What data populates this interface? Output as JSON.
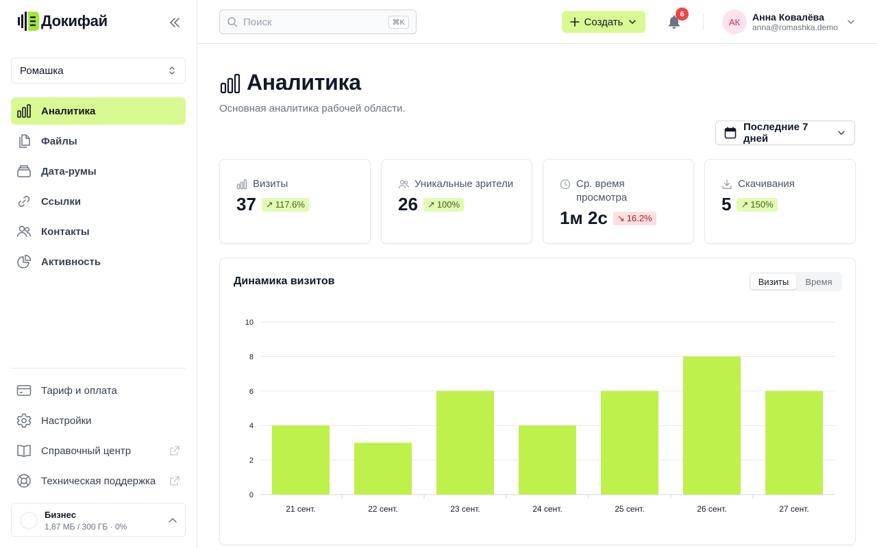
{
  "app": {
    "name": "Докифай"
  },
  "sidebar": {
    "workspace": "Ромашка",
    "nav": [
      {
        "label": "Аналитика",
        "icon": "bar-chart-icon",
        "active": true
      },
      {
        "label": "Файлы",
        "icon": "files-icon"
      },
      {
        "label": "Дата-румы",
        "icon": "data-room-icon"
      },
      {
        "label": "Ссылки",
        "icon": "link-icon"
      },
      {
        "label": "Контакты",
        "icon": "contacts-icon"
      },
      {
        "label": "Активность",
        "icon": "pie-chart-icon"
      }
    ],
    "bottom_nav": [
      {
        "label": "Тариф и оплата",
        "icon": "credit-card-icon"
      },
      {
        "label": "Настройки",
        "icon": "gear-icon"
      },
      {
        "label": "Справочный центр",
        "icon": "book-icon",
        "external": true
      },
      {
        "label": "Техническая поддержка",
        "icon": "lifebuoy-icon",
        "external": true
      }
    ],
    "plan": {
      "name": "Бизнес",
      "usage": "1,87 МБ / 300 ГБ · 0%",
      "percent": 0
    }
  },
  "topbar": {
    "search_placeholder": "Поиск",
    "search_shortcut": "⌘K",
    "create_label": "Создать",
    "notifications_count": "6",
    "user": {
      "initials": "АК",
      "name": "Анна Ковалёва",
      "email": "anna@romashka.demo"
    }
  },
  "page": {
    "title": "Аналитика",
    "subtitle": "Основная аналитика рабочей области.",
    "date_range": "Последние 7 дней"
  },
  "stats": [
    {
      "label": "Визиты",
      "value": "37",
      "change": "117.6%",
      "trend": "up",
      "icon": "bar-chart-icon"
    },
    {
      "label": "Уникальные зрители",
      "value": "26",
      "change": "100%",
      "trend": "up",
      "icon": "users-icon"
    },
    {
      "label": "Ср. время просмотра",
      "value": "1м 2с",
      "change": "16.2%",
      "trend": "down",
      "icon": "clock-icon"
    },
    {
      "label": "Скачивания",
      "value": "5",
      "change": "150%",
      "trend": "up",
      "icon": "download-icon"
    }
  ],
  "chart": {
    "title": "Динамика визитов",
    "toggle": {
      "active": "Визиты",
      "inactive": "Время"
    }
  },
  "colors": {
    "accent": "#d9fa93",
    "bar": "#bef14b",
    "up_bg": "#e3fbb5",
    "down_bg": "#fde0e0"
  },
  "chart_data": {
    "type": "bar",
    "categories": [
      "21 сент.",
      "22 сент.",
      "23 сент.",
      "24 сент.",
      "25 сент.",
      "26 сент.",
      "27 сент."
    ],
    "values": [
      4,
      3,
      6,
      4,
      6,
      8,
      6
    ],
    "ylim": [
      0,
      10
    ],
    "yticks": [
      0,
      2,
      4,
      6,
      8,
      10
    ],
    "grid": true
  }
}
